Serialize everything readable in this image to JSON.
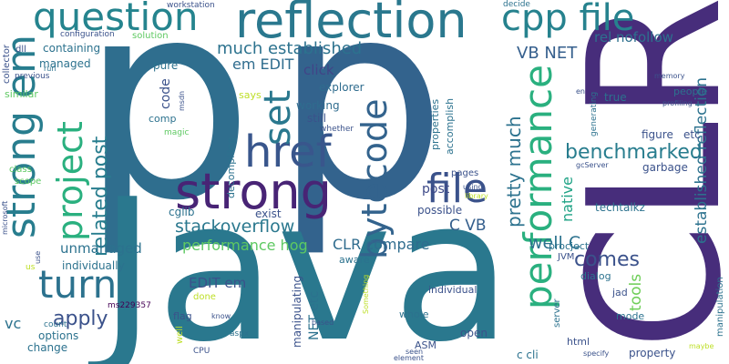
{
  "words": [
    {
      "text": "p"
    },
    {
      "text": "p"
    },
    {
      "text": "Java"
    },
    {
      "text": "CLR"
    },
    {
      "text": "reflection"
    },
    {
      "text": "strong"
    },
    {
      "text": "href"
    },
    {
      "text": "question"
    },
    {
      "text": "cpp file"
    },
    {
      "text": "strong em"
    },
    {
      "text": "project"
    },
    {
      "text": "bytecode"
    },
    {
      "text": "file"
    },
    {
      "text": "performance"
    },
    {
      "text": "turn"
    },
    {
      "text": "set"
    },
    {
      "text": "benchmarked"
    },
    {
      "text": "stackoverflow"
    },
    {
      "text": "related post"
    },
    {
      "text": "pretty much"
    },
    {
      "text": "comes"
    },
    {
      "text": "apply"
    },
    {
      "text": "much established"
    },
    {
      "text": "em EDIT"
    },
    {
      "text": "VB NET"
    },
    {
      "text": "rel nofollow"
    },
    {
      "text": "established reflection"
    },
    {
      "text": "performance hog"
    },
    {
      "text": "CLR compare"
    },
    {
      "text": "C VB"
    },
    {
      "text": "well C"
    },
    {
      "text": "EDIT em"
    },
    {
      "text": "unmanaged"
    },
    {
      "text": "tools"
    },
    {
      "text": "native"
    },
    {
      "text": "click"
    },
    {
      "text": "code"
    },
    {
      "text": "pure"
    },
    {
      "text": "working"
    },
    {
      "text": "still"
    },
    {
      "text": "explorer"
    },
    {
      "text": "post"
    },
    {
      "text": "decompiling"
    },
    {
      "text": "individually"
    },
    {
      "text": "managed"
    },
    {
      "text": "containing"
    },
    {
      "text": "similar"
    },
    {
      "text": "solution"
    },
    {
      "text": "workstation"
    },
    {
      "text": "decide"
    },
    {
      "text": "configuration"
    },
    {
      "text": "collector"
    },
    {
      "text": "dll"
    },
    {
      "text": "previous"
    },
    {
      "text": "run"
    },
    {
      "text": "class"
    },
    {
      "text": "scope"
    },
    {
      "text": "microsoft"
    },
    {
      "text": "use"
    },
    {
      "text": "us"
    },
    {
      "text": "vc"
    },
    {
      "text": "change"
    },
    {
      "text": "options"
    },
    {
      "text": "count"
    },
    {
      "text": "ms229357"
    },
    {
      "text": "flag"
    },
    {
      "text": "done"
    },
    {
      "text": "well"
    },
    {
      "text": "CPU"
    },
    {
      "text": "know"
    },
    {
      "text": "aspx"
    },
    {
      "text": "magic"
    },
    {
      "text": "msdn"
    },
    {
      "text": "comp"
    },
    {
      "text": "says"
    },
    {
      "text": "whether"
    },
    {
      "text": "accomplish"
    },
    {
      "text": "properties"
    },
    {
      "text": "pages"
    },
    {
      "text": "using"
    },
    {
      "text": "library"
    },
    {
      "text": "possible"
    },
    {
      "text": "exist"
    },
    {
      "text": "cglib"
    },
    {
      "text": "techtalkz"
    },
    {
      "text": "figure"
    },
    {
      "text": "etc"
    },
    {
      "text": "garbage"
    },
    {
      "text": "gcServer"
    },
    {
      "text": "generating"
    },
    {
      "text": "en"
    },
    {
      "text": "true"
    },
    {
      "text": "memory"
    },
    {
      "text": "profiling"
    },
    {
      "text": "people"
    },
    {
      "text": "JVM"
    },
    {
      "text": "procject"
    },
    {
      "text": "dialog"
    },
    {
      "text": "jad"
    },
    {
      "text": "mode"
    },
    {
      "text": "individual"
    },
    {
      "text": "aware"
    },
    {
      "text": "Something"
    },
    {
      "text": "manipulating"
    },
    {
      "text": "NET etc"
    },
    {
      "text": "based"
    },
    {
      "text": "whole"
    },
    {
      "text": "open"
    },
    {
      "text": "ASM"
    },
    {
      "text": "seen"
    },
    {
      "text": "element"
    },
    {
      "text": "c cli"
    },
    {
      "text": "html"
    },
    {
      "text": "property"
    },
    {
      "text": "specify"
    },
    {
      "text": "server"
    },
    {
      "text": "maybe"
    },
    {
      "text": "manipulation"
    }
  ]
}
